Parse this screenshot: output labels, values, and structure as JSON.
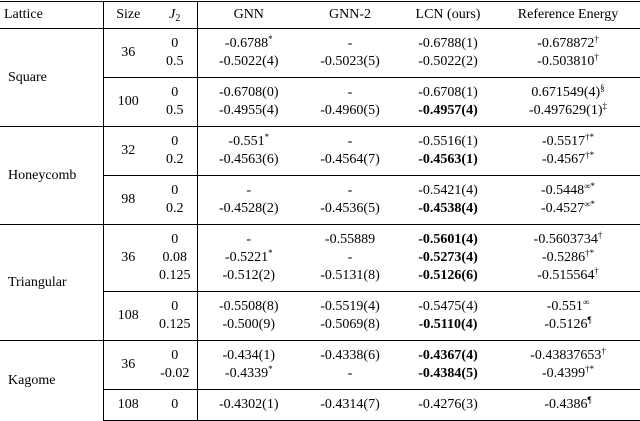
{
  "table": {
    "header": [
      "Lattice",
      "Size",
      {
        "symbol": "J",
        "subscript": "2"
      },
      "GNN",
      "GNN-2",
      "LCN (ours)",
      "Reference Energy"
    ],
    "lattices": [
      {
        "name": "Square",
        "groups": [
          {
            "size": "36",
            "rows": [
              {
                "j2": "0",
                "gnn": {
                  "text": "-0.6788",
                  "sup": "*"
                },
                "gnn2": "-",
                "lcn": "-0.6788(1)",
                "ref": {
                  "text": "-0.678872",
                  "sup": "†"
                }
              },
              {
                "j2": "0.5",
                "gnn": "-0.5022(4)",
                "gnn2": "-0.5023(5)",
                "lcn": "-0.5022(2)",
                "ref": {
                  "text": "-0.503810",
                  "sup": "†"
                }
              }
            ]
          },
          {
            "size": "100",
            "rows": [
              {
                "j2": "0",
                "gnn": "-0.6708(0)",
                "gnn2": "-",
                "lcn": "-0.6708(1)",
                "ref": {
                  "text": "0.671549(4)",
                  "sup": "§"
                }
              },
              {
                "j2": "0.5",
                "gnn": "-0.4955(4)",
                "gnn2": "-0.4960(5)",
                "lcn": {
                  "text": "-0.4957(4)",
                  "bold": true
                },
                "ref": {
                  "text": "-0.497629(1)",
                  "sup": "‡"
                }
              }
            ]
          }
        ]
      },
      {
        "name": "Honeycomb",
        "groups": [
          {
            "size": "32",
            "rows": [
              {
                "j2": "0",
                "gnn": {
                  "text": "-0.551",
                  "sup": "*"
                },
                "gnn2": "-",
                "lcn": "-0.5516(1)",
                "ref": {
                  "text": "-0.5517",
                  "sup": "†*"
                }
              },
              {
                "j2": "0.2",
                "gnn": "-0.4563(6)",
                "gnn2": "-0.4564(7)",
                "lcn": {
                  "text": "-0.4563(1)",
                  "bold": true
                },
                "ref": {
                  "text": "-0.4567",
                  "sup": "†*"
                }
              }
            ]
          },
          {
            "size": "98",
            "rows": [
              {
                "j2": "0",
                "gnn": "-",
                "gnn2": "-",
                "lcn": "-0.5421(4)",
                "ref": {
                  "text": "-0.5448",
                  "sup": "∞*"
                }
              },
              {
                "j2": "0.2",
                "gnn": "-0.4528(2)",
                "gnn2": "-0.4536(5)",
                "lcn": {
                  "text": "-0.4538(4)",
                  "bold": true
                },
                "ref": {
                  "text": "-0.4527",
                  "sup": "∞*"
                }
              }
            ]
          }
        ]
      },
      {
        "name": "Triangular",
        "groups": [
          {
            "size": "36",
            "rows": [
              {
                "j2": "0",
                "gnn": "-",
                "gnn2": "-0.55889",
                "lcn": {
                  "text": "-0.5601(4)",
                  "bold": true
                },
                "ref": {
                  "text": "-0.5603734",
                  "sup": "†"
                }
              },
              {
                "j2": "0.08",
                "gnn": {
                  "text": "-0.5221",
                  "sup": "*"
                },
                "gnn2": "-",
                "lcn": {
                  "text": "-0.5273(4)",
                  "bold": true
                },
                "ref": {
                  "text": "-0.5286",
                  "sup": "†*"
                }
              },
              {
                "j2": "0.125",
                "gnn": "-0.512(2)",
                "gnn2": "-0.5131(8)",
                "lcn": {
                  "text": "-0.5126(6)",
                  "bold": true
                },
                "ref": {
                  "text": "-0.515564",
                  "sup": "†"
                }
              }
            ]
          },
          {
            "size": "108",
            "rows": [
              {
                "j2": "0",
                "gnn": "-0.5508(8)",
                "gnn2": "-0.5519(4)",
                "lcn": "-0.5475(4)",
                "ref": {
                  "text": "-0.551",
                  "sup": "∞"
                }
              },
              {
                "j2": "0.125",
                "gnn": "-0.500(9)",
                "gnn2": "-0.5069(8)",
                "lcn": {
                  "text": "-0.5110(4)",
                  "bold": true
                },
                "ref": {
                  "text": "-0.5126",
                  "sup": "¶"
                }
              }
            ]
          }
        ]
      },
      {
        "name": "Kagome",
        "groups": [
          {
            "size": "36",
            "rows": [
              {
                "j2": "0",
                "gnn": "-0.434(1)",
                "gnn2": "-0.4338(6)",
                "lcn": {
                  "text": "-0.4367(4)",
                  "bold": true
                },
                "ref": {
                  "text": "-0.43837653",
                  "sup": "†"
                }
              },
              {
                "j2": "-0.02",
                "gnn": {
                  "text": "-0.4339",
                  "sup": "*"
                },
                "gnn2": "-",
                "lcn": {
                  "text": "-0.4384(5)",
                  "bold": true
                },
                "ref": {
                  "text": "-0.4399",
                  "sup": "†*"
                }
              }
            ]
          },
          {
            "size": "108",
            "rows": [
              {
                "j2": "0",
                "gnn": "-0.4302(1)",
                "gnn2": "-0.4314(7)",
                "lcn": "-0.4276(3)",
                "ref": {
                  "text": "-0.4386",
                  "sup": "¶"
                }
              }
            ]
          }
        ]
      }
    ]
  }
}
